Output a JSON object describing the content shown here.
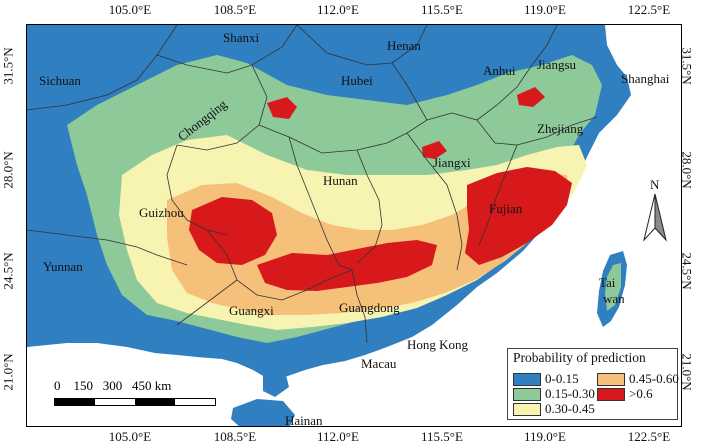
{
  "map": {
    "top_ticks": [
      "105.0°E",
      "108.5°E",
      "112.0°E",
      "115.5°E",
      "119.0°E",
      "122.5°E"
    ],
    "bottom_ticks": [
      "105.0°E",
      "108.5°E",
      "112.0°E",
      "115.5°E",
      "119.0°E",
      "122.5°E"
    ],
    "left_ticks": [
      "31.5°N",
      "28.0°N",
      "24.5°N",
      "21.0°N"
    ],
    "right_ticks": [
      "31.5°N",
      "28.0°N",
      "24.5°N",
      "21.0°N"
    ],
    "regions": {
      "shanxi": "Shanxi",
      "henan": "Henan",
      "sichuan": "Sichuan",
      "hubei": "Hubei",
      "anhui": "Anhui",
      "jiangsu": "Jiangsu",
      "shanghai": "Shanghai",
      "chongqing": "Chongqing",
      "zhejiang": "Zhejiang",
      "jiangxi": "Jiangxi",
      "hunan": "Hunan",
      "guizhou": "Guizhou",
      "fujian": "Fujian",
      "yunnan": "Yunnan",
      "taiwan_1": "Tai",
      "taiwan_2": "wan",
      "guangxi": "Guangxi",
      "guangdong": "Guangdong",
      "hong_kong": "Hong Kong",
      "macau": "Macau",
      "hainan": "Hainan"
    },
    "north_label": "N",
    "scale": {
      "labels": "0    150   300   450 km"
    },
    "colors": {
      "sea": "#ffffff",
      "low": "#2f7fc1",
      "c2": "#8ec99a",
      "c3": "#f7f3b0",
      "c4": "#f5c07a",
      "c5": "#d7191c"
    },
    "legend": {
      "title": "Probability of prediction",
      "items": [
        {
          "label": "0-0.15",
          "color": "#2f7fc1"
        },
        {
          "label": "0.15-0.30",
          "color": "#8ec99a"
        },
        {
          "label": "0.30-0.45",
          "color": "#f7f3b0"
        },
        {
          "label": "0.45-0.60",
          "color": "#f5c07a"
        },
        {
          "label": ">0.6",
          "color": "#d7191c"
        }
      ]
    }
  }
}
